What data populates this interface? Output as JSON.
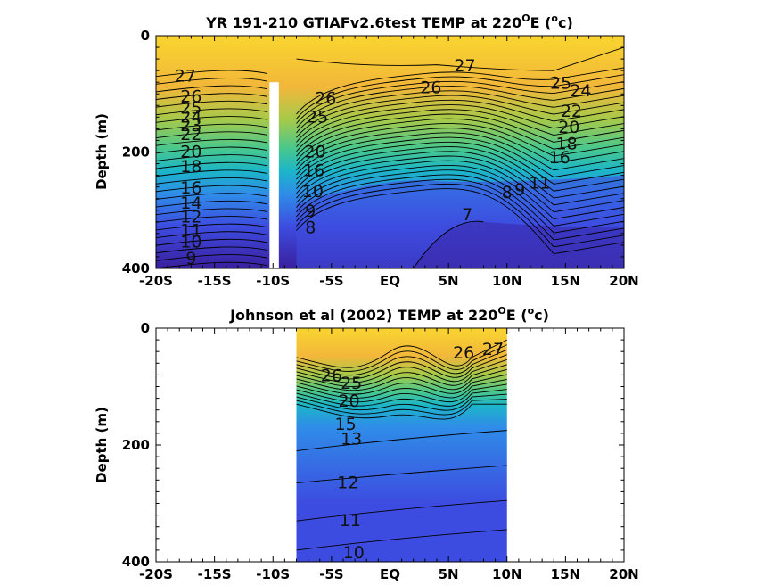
{
  "chart_data": [
    {
      "type": "contour",
      "title_main": "YR 191-210 GTIAFv2.6test TEMP at 220",
      "title_deg": "O",
      "title_mid": "E (",
      "title_sup": "o",
      "title_end": "c)",
      "ylabel": "Depth (m)",
      "xlim": [
        -20,
        20
      ],
      "ylim": [
        0,
        400
      ],
      "x_ticks": [
        -20,
        -15,
        -10,
        -5,
        0,
        5,
        10,
        15,
        20
      ],
      "x_tick_labels": [
        "-20S",
        "-15S",
        "-10S",
        "-5S",
        "EQ",
        "5N",
        "10N",
        "15N",
        "20N"
      ],
      "y_ticks": [
        0,
        200,
        400
      ],
      "y_tick_labels": [
        "0",
        "200",
        "400"
      ],
      "colors": [
        "#3a1f9e",
        "#3d4ce0",
        "#2f8de8",
        "#1cb6c8",
        "#4cc88a",
        "#a6c94a",
        "#f2b73a",
        "#f9d52f"
      ],
      "data_gap_x": [
        -10.3,
        -9.5
      ],
      "data_gap_depth": [
        80,
        400
      ],
      "contour_labels": [
        {
          "text": "27",
          "x": -17.5,
          "y": 70
        },
        {
          "text": "26",
          "x": -17,
          "y": 105
        },
        {
          "text": "25",
          "x": -17,
          "y": 125
        },
        {
          "text": "24",
          "x": -17,
          "y": 140
        },
        {
          "text": "23",
          "x": -17,
          "y": 155
        },
        {
          "text": "22",
          "x": -17,
          "y": 170
        },
        {
          "text": "20",
          "x": -17,
          "y": 200
        },
        {
          "text": "18",
          "x": -17,
          "y": 225
        },
        {
          "text": "16",
          "x": -17,
          "y": 262
        },
        {
          "text": "14",
          "x": -17,
          "y": 288
        },
        {
          "text": "12",
          "x": -17,
          "y": 312
        },
        {
          "text": "11",
          "x": -17,
          "y": 335
        },
        {
          "text": "10",
          "x": -17,
          "y": 355
        },
        {
          "text": "9",
          "x": -17,
          "y": 383
        },
        {
          "text": "26",
          "x": -5.5,
          "y": 108
        },
        {
          "text": "25",
          "x": -6.2,
          "y": 140
        },
        {
          "text": "20",
          "x": -6.4,
          "y": 200
        },
        {
          "text": "16",
          "x": -6.5,
          "y": 232
        },
        {
          "text": "10",
          "x": -6.6,
          "y": 268
        },
        {
          "text": "9",
          "x": -6.8,
          "y": 302
        },
        {
          "text": "8",
          "x": -6.8,
          "y": 330
        },
        {
          "text": "26",
          "x": 3.5,
          "y": 90
        },
        {
          "text": "27",
          "x": 6.4,
          "y": 52
        },
        {
          "text": "25",
          "x": 14.6,
          "y": 82
        },
        {
          "text": "24",
          "x": 16.3,
          "y": 95
        },
        {
          "text": "22",
          "x": 15.5,
          "y": 130
        },
        {
          "text": "20",
          "x": 15.3,
          "y": 158
        },
        {
          "text": "18",
          "x": 15.1,
          "y": 186
        },
        {
          "text": "16",
          "x": 14.5,
          "y": 210
        },
        {
          "text": "11",
          "x": 12.8,
          "y": 254
        },
        {
          "text": "9",
          "x": 11.1,
          "y": 265
        },
        {
          "text": "8",
          "x": 10.0,
          "y": 270
        },
        {
          "text": "7",
          "x": 6.6,
          "y": 308
        }
      ]
    },
    {
      "type": "contour",
      "title_main": "Johnson et al (2002) TEMP at 220",
      "title_deg": "O",
      "title_mid": "E (",
      "title_sup": "o",
      "title_end": "c)",
      "ylabel": "Depth (m)",
      "xlim": [
        -20,
        20
      ],
      "ylim": [
        0,
        400
      ],
      "x_ticks": [
        -20,
        -15,
        -10,
        -5,
        0,
        5,
        10,
        15,
        20
      ],
      "x_tick_labels": [
        "-20S",
        "-15S",
        "-10S",
        "-5S",
        "EQ",
        "5N",
        "10N",
        "15N",
        "20N"
      ],
      "y_ticks": [
        0,
        200,
        400
      ],
      "y_tick_labels": [
        "0",
        "200",
        "400"
      ],
      "colors": [
        "#3a1f9e",
        "#3d4ce0",
        "#2f8de8",
        "#1cb6c8",
        "#4cc88a",
        "#a6c94a",
        "#f2b73a",
        "#f9d52f"
      ],
      "data_xrange": [
        -8,
        10
      ],
      "contour_labels": [
        {
          "text": "26",
          "x": 6.3,
          "y": 43
        },
        {
          "text": "27",
          "x": 8.8,
          "y": 37
        },
        {
          "text": "26",
          "x": -5.0,
          "y": 82
        },
        {
          "text": "25",
          "x": -3.3,
          "y": 95
        },
        {
          "text": "20",
          "x": -3.5,
          "y": 125
        },
        {
          "text": "15",
          "x": -3.8,
          "y": 165
        },
        {
          "text": "13",
          "x": -3.3,
          "y": 190
        },
        {
          "text": "12",
          "x": -3.6,
          "y": 265
        },
        {
          "text": "11",
          "x": -3.4,
          "y": 330
        },
        {
          "text": "10",
          "x": -3.1,
          "y": 385
        }
      ]
    }
  ]
}
